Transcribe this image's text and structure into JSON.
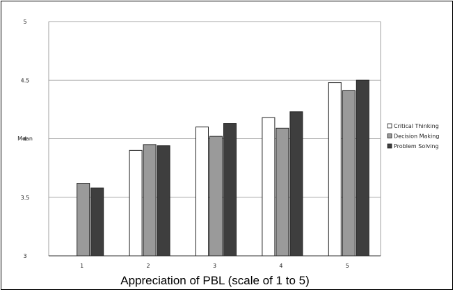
{
  "chart_data": {
    "type": "bar",
    "title": "",
    "xlabel": "Appreciation of PBL (scale of 1 to 5)",
    "ylabel": "Mean",
    "categories": [
      "1",
      "2",
      "3",
      "4",
      "5"
    ],
    "ylim": [
      3,
      5
    ],
    "yticks": [
      "3",
      "3.5",
      "4",
      "4.5",
      "5"
    ],
    "grid": true,
    "legend_position": "right",
    "series": [
      {
        "name": "Critical Thinking",
        "color": "#ffffff",
        "values": [
          null,
          3.9,
          4.1,
          4.18,
          4.48
        ]
      },
      {
        "name": "Decision Making",
        "color": "#9a9a9a",
        "values": [
          3.62,
          3.95,
          4.02,
          4.09,
          4.41
        ]
      },
      {
        "name": "Problem Solving",
        "color": "#3e3e3e",
        "values": [
          3.58,
          3.94,
          4.13,
          4.23,
          4.5
        ]
      }
    ]
  }
}
